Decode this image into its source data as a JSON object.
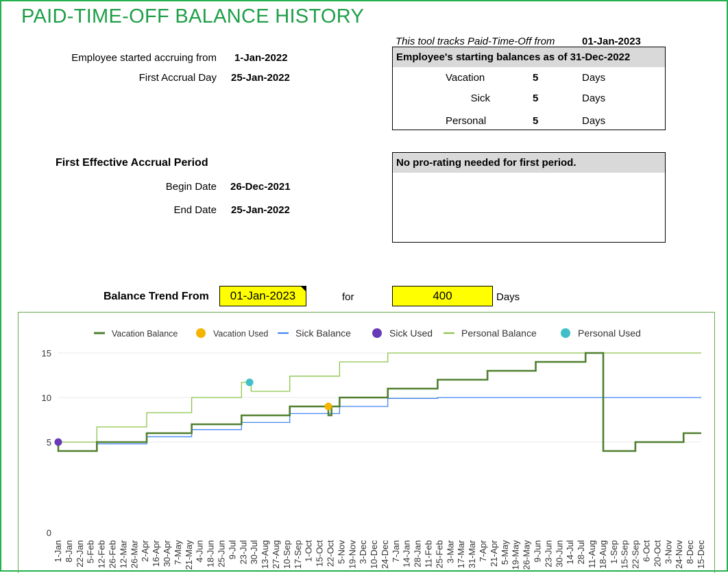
{
  "title": "PAID-TIME-OFF BALANCE HISTORY",
  "left": {
    "accrue_label": "Employee started accruing from",
    "accrue_value": "1-Jan-2022",
    "first_accrual_label": "First Accrual Day",
    "first_accrual_value": "25-Jan-2022",
    "period_heading": "First Effective Accrual Period",
    "begin_label": "Begin Date",
    "begin_value": "26-Dec-2021",
    "end_label": "End Date",
    "end_value": "25-Jan-2022"
  },
  "right": {
    "tracks_label": "This tool tracks Paid-Time-Off from",
    "tracks_value": "01-Jan-2023",
    "balances_header": "Employee's starting balances as of 31-Dec-2022",
    "balances": [
      {
        "name": "Vacation",
        "value": "5",
        "unit": "Days"
      },
      {
        "name": "Sick",
        "value": "5",
        "unit": "Days"
      },
      {
        "name": "Personal",
        "value": "5",
        "unit": "Days"
      }
    ],
    "prorate_header": "No pro-rating needed for first period."
  },
  "trend": {
    "label": "Balance Trend From",
    "from_value": "01-Jan-2023",
    "for_label": "for",
    "days_value": "400",
    "days_label": "Days"
  },
  "colors": {
    "title": "#1e9e48",
    "vacation_balance": "#4f7f2f",
    "vacation_used": "#f5b400",
    "sick_balance": "#4285f4",
    "sick_used": "#673ab7",
    "personal_balance": "#8bc34a",
    "personal_used": "#40bfc8",
    "input_fill": "#ffff00"
  },
  "chart_data": {
    "type": "line",
    "y_ticks": [
      "0",
      "5",
      "10",
      "15"
    ],
    "ylim": [
      0,
      15
    ],
    "x_ticks": [
      "1-Jan",
      "8-Jan",
      "22-Jan",
      "5-Feb",
      "12-Feb",
      "26-Feb",
      "12-Mar",
      "26-Mar",
      "2-Apr",
      "16-Apr",
      "30-Apr",
      "7-May",
      "21-May",
      "4-Jun",
      "18-Jun",
      "25-Jun",
      "9-Jul",
      "23-Jul",
      "30-Jul",
      "13-Aug",
      "27-Aug",
      "10-Sep",
      "17-Sep",
      "1-Oct",
      "15-Oct",
      "22-Oct",
      "5-Nov",
      "19-Nov",
      "3-Dec",
      "10-Dec",
      "24-Dec",
      "7-Jan",
      "14-Jan",
      "28-Jan",
      "11-Feb",
      "25-Feb",
      "3-Mar",
      "17-Mar",
      "31-Mar",
      "7-Apr",
      "21-Apr",
      "5-May",
      "19-May",
      "26-May",
      "9-Jun",
      "23-Jun",
      "30-Jun",
      "14-Jul",
      "28-Jul",
      "11-Aug",
      "18-Aug",
      "1-Sep",
      "15-Sep",
      "22-Sep",
      "6-Oct",
      "20-Oct",
      "3-Nov",
      "24-Nov",
      "8-Dec",
      "15-Dec"
    ],
    "x_range_days": [
      0,
      400
    ],
    "legend": [
      "Vacation Balance",
      "Vacation Used",
      "Sick Balance",
      "Sick Used",
      "Personal Balance",
      "Personal Used"
    ],
    "series": [
      {
        "name": "Vacation Balance",
        "kind": "line",
        "points": [
          [
            0,
            5
          ],
          [
            0,
            4
          ],
          [
            24,
            4
          ],
          [
            24,
            5
          ],
          [
            55,
            5
          ],
          [
            55,
            6
          ],
          [
            83,
            6
          ],
          [
            83,
            7
          ],
          [
            114,
            7
          ],
          [
            114,
            8
          ],
          [
            144,
            8
          ],
          [
            144,
            9
          ],
          [
            168,
            9
          ],
          [
            168,
            8
          ],
          [
            170,
            8
          ],
          [
            170,
            9
          ],
          [
            175,
            9
          ],
          [
            175,
            10
          ],
          [
            205,
            10
          ],
          [
            205,
            11
          ],
          [
            236,
            11
          ],
          [
            236,
            12
          ],
          [
            267,
            12
          ],
          [
            267,
            13
          ],
          [
            297,
            13
          ],
          [
            297,
            14
          ],
          [
            328,
            14
          ],
          [
            328,
            15
          ],
          [
            339,
            15
          ],
          [
            339,
            4
          ],
          [
            359,
            4
          ],
          [
            359,
            5
          ],
          [
            389,
            5
          ],
          [
            389,
            6
          ],
          [
            400,
            6
          ]
        ]
      },
      {
        "name": "Sick Balance",
        "kind": "line",
        "points": [
          [
            0,
            5
          ],
          [
            0,
            4
          ],
          [
            24,
            4
          ],
          [
            24,
            4.8
          ],
          [
            55,
            4.8
          ],
          [
            55,
            5.6
          ],
          [
            83,
            5.6
          ],
          [
            83,
            6.4
          ],
          [
            114,
            6.4
          ],
          [
            114,
            7.2
          ],
          [
            144,
            7.2
          ],
          [
            144,
            8.2
          ],
          [
            175,
            8.2
          ],
          [
            175,
            9
          ],
          [
            205,
            9
          ],
          [
            205,
            9.9
          ],
          [
            236,
            9.9
          ],
          [
            236,
            10
          ],
          [
            400,
            10
          ]
        ]
      },
      {
        "name": "Personal Balance",
        "kind": "line",
        "points": [
          [
            0,
            5
          ],
          [
            24,
            5
          ],
          [
            24,
            6.7
          ],
          [
            55,
            6.7
          ],
          [
            55,
            8.3
          ],
          [
            83,
            8.3
          ],
          [
            83,
            10
          ],
          [
            114,
            10
          ],
          [
            114,
            11.7
          ],
          [
            120,
            11.7
          ],
          [
            120,
            10.7
          ],
          [
            144,
            10.7
          ],
          [
            144,
            12.4
          ],
          [
            175,
            12.4
          ],
          [
            175,
            14
          ],
          [
            205,
            14
          ],
          [
            205,
            15
          ],
          [
            400,
            15
          ]
        ]
      },
      {
        "name": "Vacation Used",
        "kind": "points",
        "points": [
          [
            168,
            9
          ]
        ]
      },
      {
        "name": "Sick Used",
        "kind": "points",
        "points": [
          [
            0,
            5
          ]
        ]
      },
      {
        "name": "Personal Used",
        "kind": "points",
        "points": [
          [
            119,
            11.7
          ]
        ]
      }
    ]
  }
}
